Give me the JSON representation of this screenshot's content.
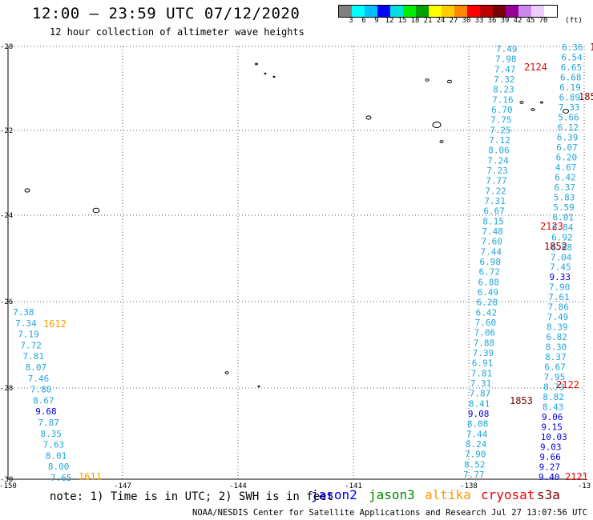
{
  "header": {
    "title": "12:00 – 23:59 UTC 07/12/2020",
    "subtitle": "12 hour collection of altimeter wave heights"
  },
  "legend": {
    "colors": [
      "#808080",
      "#00ffff",
      "#00bfff",
      "#0000ff",
      "#00e0e0",
      "#00ee00",
      "#00a000",
      "#ffff00",
      "#ffcc00",
      "#ff8800",
      "#ff0000",
      "#bb0000",
      "#770000",
      "#990099",
      "#cc88ee",
      "#eeccff",
      "#ffffff"
    ],
    "labels": [
      "3",
      "6",
      "9",
      "12",
      "15",
      "18",
      "21",
      "24",
      "27",
      "30",
      "33",
      "36",
      "39",
      "42",
      "45",
      "70"
    ],
    "unit": "(ft)"
  },
  "axes": {
    "lon_labels": [
      "-150",
      "-147",
      "-144",
      "-141",
      "-138",
      "-13"
    ],
    "lat_labels": [
      "-20",
      "-22",
      "-24",
      "-26",
      "-28",
      "-30"
    ]
  },
  "tracks": {
    "left_track": [
      {
        "v": "7.38",
        "c": "#1fa5dc"
      },
      {
        "v": "7.34",
        "c": "#1fa5dc"
      },
      {
        "v": "7.19",
        "c": "#1fa5dc"
      },
      {
        "v": "7.72",
        "c": "#1fa5dc"
      },
      {
        "v": "7.81",
        "c": "#1fa5dc"
      },
      {
        "v": "8.07",
        "c": "#1fa5dc"
      },
      {
        "v": "7.46",
        "c": "#1fa5dc"
      },
      {
        "v": "7.80",
        "c": "#1fa5dc"
      },
      {
        "v": "8.67",
        "c": "#1fa5dc"
      },
      {
        "v": "9.68",
        "c": "#0000dd"
      },
      {
        "v": "7.87",
        "c": "#1fa5dc"
      },
      {
        "v": "8.35",
        "c": "#1fa5dc"
      },
      {
        "v": "7.63",
        "c": "#1fa5dc"
      },
      {
        "v": "8.01",
        "c": "#1fa5dc"
      },
      {
        "v": "8.00",
        "c": "#1fa5dc"
      },
      {
        "v": "7.65",
        "c": "#1fa5dc"
      }
    ],
    "right_track_a": [
      {
        "v": "7.49",
        "c": "#1fa5dc"
      },
      {
        "v": "7.98",
        "c": "#1fa5dc"
      },
      {
        "v": "7.47",
        "c": "#1fa5dc"
      },
      {
        "v": "7.32",
        "c": "#1fa5dc"
      },
      {
        "v": "8.23",
        "c": "#1fa5dc"
      },
      {
        "v": "7.16",
        "c": "#1fa5dc"
      },
      {
        "v": "6.70",
        "c": "#1fa5dc"
      },
      {
        "v": "7.75",
        "c": "#1fa5dc"
      },
      {
        "v": "7.25",
        "c": "#1fa5dc"
      },
      {
        "v": "7.12",
        "c": "#1fa5dc"
      },
      {
        "v": "8.06",
        "c": "#1fa5dc"
      },
      {
        "v": "7.24",
        "c": "#1fa5dc"
      },
      {
        "v": "7.23",
        "c": "#1fa5dc"
      },
      {
        "v": "7.77",
        "c": "#1fa5dc"
      },
      {
        "v": "7.22",
        "c": "#1fa5dc"
      },
      {
        "v": "7.31",
        "c": "#1fa5dc"
      },
      {
        "v": "6.67",
        "c": "#1fa5dc"
      },
      {
        "v": "8.15",
        "c": "#1fa5dc"
      },
      {
        "v": "7.48",
        "c": "#1fa5dc"
      },
      {
        "v": "7.60",
        "c": "#1fa5dc"
      },
      {
        "v": "7.44",
        "c": "#1fa5dc"
      },
      {
        "v": "6.98",
        "c": "#1fa5dc"
      },
      {
        "v": "6.72",
        "c": "#1fa5dc"
      },
      {
        "v": "6.88",
        "c": "#1fa5dc"
      },
      {
        "v": "6.49",
        "c": "#1fa5dc"
      },
      {
        "v": "6.28",
        "c": "#1fa5dc"
      },
      {
        "v": "6.42",
        "c": "#1fa5dc"
      },
      {
        "v": "7.60",
        "c": "#1fa5dc"
      },
      {
        "v": "7.06",
        "c": "#1fa5dc"
      },
      {
        "v": "7.88",
        "c": "#1fa5dc"
      },
      {
        "v": "7.39",
        "c": "#1fa5dc"
      },
      {
        "v": "6.91",
        "c": "#1fa5dc"
      },
      {
        "v": "7.81",
        "c": "#1fa5dc"
      },
      {
        "v": "7.31",
        "c": "#1fa5dc"
      },
      {
        "v": "7.87",
        "c": "#1fa5dc"
      },
      {
        "v": "8.41",
        "c": "#1fa5dc"
      },
      {
        "v": "9.08",
        "c": "#0000dd"
      },
      {
        "v": "8.08",
        "c": "#1fa5dc"
      },
      {
        "v": "7.44",
        "c": "#1fa5dc"
      },
      {
        "v": "8.24",
        "c": "#1fa5dc"
      },
      {
        "v": "7.90",
        "c": "#1fa5dc"
      },
      {
        "v": "8.52",
        "c": "#1fa5dc"
      },
      {
        "v": "7.77",
        "c": "#1fa5dc"
      }
    ],
    "right_track_b": [
      {
        "v": "6.36",
        "c": "#1fa5dc"
      },
      {
        "v": "6.54",
        "c": "#1fa5dc"
      },
      {
        "v": "6.65",
        "c": "#1fa5dc"
      },
      {
        "v": "6.68",
        "c": "#1fa5dc"
      },
      {
        "v": "6.19",
        "c": "#1fa5dc"
      },
      {
        "v": "6.89",
        "c": "#1fa5dc"
      },
      {
        "v": "7.33",
        "c": "#1fa5dc"
      },
      {
        "v": "5.66",
        "c": "#1fa5dc"
      },
      {
        "v": "6.12",
        "c": "#1fa5dc"
      },
      {
        "v": "6.39",
        "c": "#1fa5dc"
      },
      {
        "v": "6.07",
        "c": "#1fa5dc"
      },
      {
        "v": "6.20",
        "c": "#1fa5dc"
      },
      {
        "v": "4.67",
        "c": "#1fa5dc"
      },
      {
        "v": "6.42",
        "c": "#1fa5dc"
      },
      {
        "v": "6.37",
        "c": "#1fa5dc"
      },
      {
        "v": "5.83",
        "c": "#1fa5dc"
      },
      {
        "v": "5.59",
        "c": "#1fa5dc"
      },
      {
        "v": "6.01",
        "c": "#1fa5dc"
      },
      {
        "v": "6.84",
        "c": "#1fa5dc"
      },
      {
        "v": "6.92",
        "c": "#1fa5dc"
      },
      {
        "v": "6.98",
        "c": "#1fa5dc"
      },
      {
        "v": "7.04",
        "c": "#1fa5dc"
      },
      {
        "v": "7.45",
        "c": "#1fa5dc"
      },
      {
        "v": "9.33",
        "c": "#0000dd"
      },
      {
        "v": "7.90",
        "c": "#1fa5dc"
      },
      {
        "v": "7.61",
        "c": "#1fa5dc"
      },
      {
        "v": "7.86",
        "c": "#1fa5dc"
      },
      {
        "v": "7.49",
        "c": "#1fa5dc"
      },
      {
        "v": "8.39",
        "c": "#1fa5dc"
      },
      {
        "v": "6.82",
        "c": "#1fa5dc"
      },
      {
        "v": "8.30",
        "c": "#1fa5dc"
      },
      {
        "v": "8.37",
        "c": "#1fa5dc"
      },
      {
        "v": "6.67",
        "c": "#1fa5dc"
      },
      {
        "v": "7.95",
        "c": "#1fa5dc"
      },
      {
        "v": "8.73",
        "c": "#1fa5dc"
      },
      {
        "v": "8.82",
        "c": "#1fa5dc"
      },
      {
        "v": "8.43",
        "c": "#1fa5dc"
      },
      {
        "v": "9.06",
        "c": "#0000dd"
      },
      {
        "v": "9.15",
        "c": "#0000dd"
      },
      {
        "v": "10.03",
        "c": "#0000dd"
      },
      {
        "v": "9.03",
        "c": "#0000dd"
      },
      {
        "v": "9.66",
        "c": "#0000dd"
      },
      {
        "v": "9.27",
        "c": "#0000dd"
      },
      {
        "v": "9.40",
        "c": "#0000dd"
      }
    ],
    "time_labels": [
      {
        "t": "1612",
        "c": "#f0a000"
      },
      {
        "t": "1611",
        "c": "#f0a000"
      },
      {
        "t": "2124",
        "c": "#ee0000"
      },
      {
        "t": "2123",
        "c": "#ee0000"
      },
      {
        "t": "2122",
        "c": "#ee0000"
      },
      {
        "t": "2121",
        "c": "#ee0000"
      },
      {
        "t": "1852",
        "c": "#800000"
      },
      {
        "t": "1853",
        "c": "#800000"
      },
      {
        "t": "185",
        "c": "#800000"
      },
      {
        "t": "185",
        "c": "#800000"
      }
    ]
  },
  "footer": {
    "note": "note: 1) Time is in UTC; 2) SWH is in feet",
    "satellites": [
      {
        "name": "jason2",
        "color": "#0000ee"
      },
      {
        "name": "jason3",
        "color": "#008800"
      },
      {
        "name": "altika",
        "color": "#ff9900"
      },
      {
        "name": "cryosat",
        "color": "#ee0000"
      },
      {
        "name": "s3a",
        "color": "#770000"
      }
    ],
    "credit": "NOAA/NESDIS Center for Satellite Applications and Research   Jul 27 13:07:56 UTC 2020"
  }
}
